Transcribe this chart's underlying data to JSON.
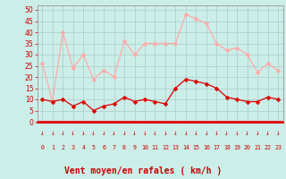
{
  "hours": [
    0,
    1,
    2,
    3,
    4,
    5,
    6,
    7,
    8,
    9,
    10,
    11,
    12,
    13,
    14,
    15,
    16,
    17,
    18,
    19,
    20,
    21,
    22,
    23
  ],
  "wind_avg": [
    10,
    9,
    10,
    7,
    9,
    5,
    7,
    8,
    11,
    9,
    10,
    9,
    8,
    15,
    19,
    18,
    17,
    15,
    11,
    10,
    9,
    9,
    11,
    10
  ],
  "wind_gust": [
    26,
    9,
    40,
    24,
    30,
    19,
    23,
    20,
    36,
    30,
    35,
    35,
    35,
    35,
    48,
    46,
    44,
    35,
    32,
    33,
    30,
    22,
    26,
    23
  ],
  "bg_color": "#cceee8",
  "avg_color": "#dd0000",
  "gust_color": "#ffaaaa",
  "xlabel": "Vent moyen/en rafales ( km/h )",
  "xlabel_color": "#cc0000",
  "xlabel_fontsize": 7,
  "yticks": [
    0,
    5,
    10,
    15,
    20,
    25,
    30,
    35,
    40,
    45,
    50
  ],
  "ylim": [
    0,
    52
  ],
  "grid_color": "#aacccc",
  "tick_color": "#cc0000",
  "spine_color": "#888888"
}
